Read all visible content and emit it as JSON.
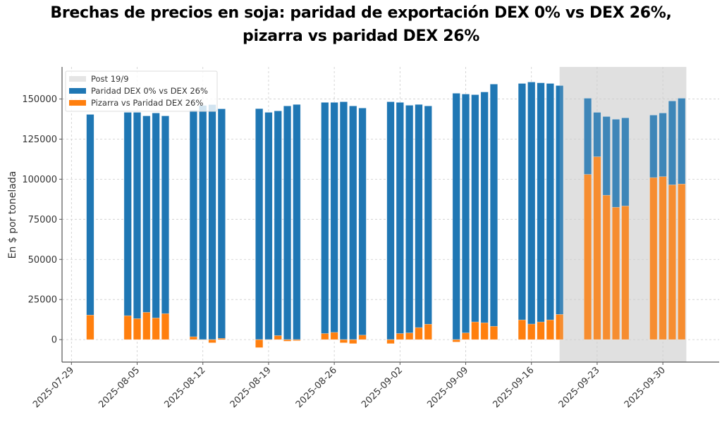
{
  "chart_data": {
    "type": "bar",
    "title_line1": "Brechas de precios en soja: paridad de exportación DEX 0% vs DEX 26%,",
    "title_line2": "pizarra vs paridad DEX 26%",
    "xlabel": "",
    "ylabel": "En $ por tonelada",
    "ylim": [
      -14000,
      170000
    ],
    "xlim": [
      "2025-07-28",
      "2025-10-06"
    ],
    "grid": true,
    "legend_position": "top-left",
    "yticks": [
      0,
      25000,
      50000,
      75000,
      100000,
      125000,
      150000
    ],
    "ytick_labels": [
      "0",
      "25000",
      "50000",
      "75000",
      "100000",
      "125000",
      "150000"
    ],
    "xticks": [
      "2025-07-29",
      "2025-08-05",
      "2025-08-12",
      "2025-08-19",
      "2025-08-26",
      "2025-09-02",
      "2025-09-09",
      "2025-09-16",
      "2025-09-23",
      "2025-09-30"
    ],
    "shaded_region": {
      "label": "Post 19/9",
      "start": "2025-09-19",
      "end": "2025-10-02",
      "color": "#e5e5e5"
    },
    "legend": [
      {
        "label": "Post 19/9",
        "color": "#e5e5e5"
      },
      {
        "label": "Paridad DEX 0% vs DEX 26%",
        "color": "#1f77b4"
      },
      {
        "label": "Pizarra vs Paridad DEX 26%",
        "color": "#ff7f0e"
      }
    ],
    "dates": [
      "2025-07-31",
      "2025-08-04",
      "2025-08-05",
      "2025-08-06",
      "2025-08-07",
      "2025-08-08",
      "2025-08-11",
      "2025-08-12",
      "2025-08-13",
      "2025-08-14",
      "2025-08-18",
      "2025-08-19",
      "2025-08-20",
      "2025-08-21",
      "2025-08-22",
      "2025-08-25",
      "2025-08-26",
      "2025-08-27",
      "2025-08-28",
      "2025-08-29",
      "2025-09-01",
      "2025-09-02",
      "2025-09-03",
      "2025-09-04",
      "2025-09-05",
      "2025-09-08",
      "2025-09-09",
      "2025-09-10",
      "2025-09-11",
      "2025-09-12",
      "2025-09-15",
      "2025-09-16",
      "2025-09-17",
      "2025-09-18",
      "2025-09-19",
      "2025-09-22",
      "2025-09-23",
      "2025-09-24",
      "2025-09-25",
      "2025-09-26",
      "2025-09-29",
      "2025-09-30",
      "2025-10-01",
      "2025-10-02"
    ],
    "series": [
      {
        "name": "Paridad DEX 0% vs DEX 26%",
        "color": "#1f77b4",
        "values": [
          140400,
          141700,
          141700,
          139500,
          141300,
          139500,
          143000,
          146000,
          146500,
          143900,
          144000,
          141700,
          142600,
          145700,
          146600,
          147900,
          147900,
          148300,
          145700,
          144400,
          148300,
          147900,
          146100,
          146600,
          145700,
          153600,
          153100,
          152700,
          154400,
          159300,
          159700,
          160600,
          160100,
          159700,
          158400,
          150500,
          141700,
          139100,
          137400,
          138300,
          140000,
          141300,
          148800,
          150500
        ]
      },
      {
        "name": "Pizarra vs Paridad DEX 26%",
        "color": "#ff7f0e",
        "values": [
          15300,
          14900,
          13100,
          17000,
          13500,
          16200,
          1800,
          0,
          -2000,
          800,
          -5000,
          0,
          2500,
          -1000,
          -700,
          3800,
          4500,
          -2000,
          -2500,
          2800,
          -2500,
          3800,
          4200,
          7500,
          9600,
          -1500,
          4200,
          11000,
          10500,
          8300,
          12300,
          9700,
          11000,
          12300,
          15700,
          103000,
          114000,
          90000,
          82500,
          83300,
          101000,
          101600,
          96500,
          97000
        ]
      }
    ]
  }
}
